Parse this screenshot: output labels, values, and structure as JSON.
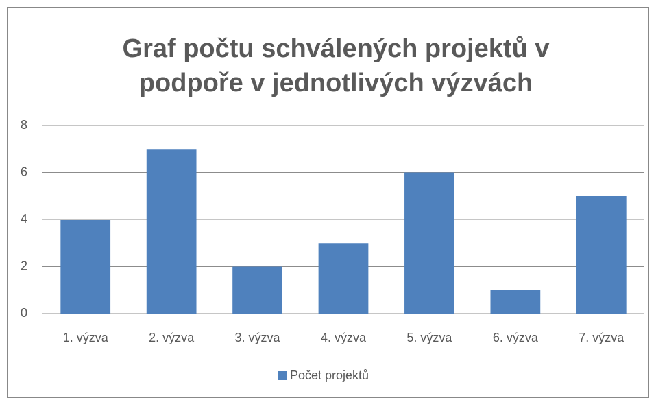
{
  "chart_data": {
    "type": "bar",
    "title": "Graf počtu schválených projektů v podpoře v jednotlivých výzvách",
    "categories": [
      "1. výzva",
      "2. výzva",
      "3. výzva",
      "4. výzva",
      "5. výzva",
      "6. výzva",
      "7. výzva"
    ],
    "series": [
      {
        "name": "Počet projektů",
        "color": "#4f81bd",
        "values": [
          4,
          7,
          2,
          3,
          6,
          1,
          5
        ]
      }
    ],
    "ylim": [
      0,
      8
    ],
    "yticks": [
      0,
      2,
      4,
      6,
      8
    ],
    "grid": true,
    "legend": "bottom"
  }
}
